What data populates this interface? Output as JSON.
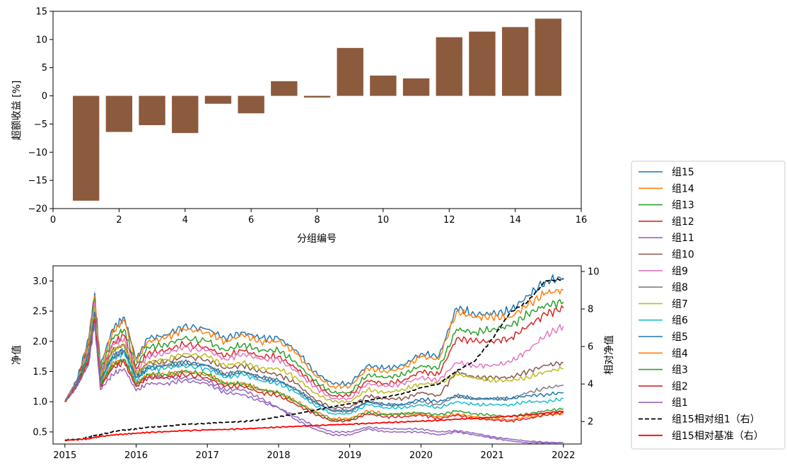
{
  "chart_data": [
    {
      "type": "bar",
      "xlabel": "分组编号",
      "ylabel": "超额收益 [%]",
      "xlim": [
        0,
        16
      ],
      "ylim": [
        -20,
        15
      ],
      "xticks": [
        0,
        2,
        4,
        6,
        8,
        10,
        12,
        14,
        16
      ],
      "yticks": [
        -20,
        -15,
        -10,
        -5,
        0,
        5,
        10,
        15
      ],
      "bar_color": "#8c5a3c",
      "grid": false,
      "categories": [
        1,
        2,
        3,
        4,
        5,
        6,
        7,
        8,
        9,
        10,
        11,
        12,
        13,
        14,
        15
      ],
      "values": [
        -18.6,
        -6.4,
        -5.2,
        -6.6,
        -1.4,
        -3.1,
        2.6,
        -0.3,
        8.5,
        3.6,
        3.1,
        10.4,
        11.4,
        12.2,
        13.7
      ]
    },
    {
      "type": "line",
      "ylabel": "净值",
      "y2label": "相对净值",
      "xlim": [
        "2014-11-01",
        "2022-04-01"
      ],
      "ylim": [
        0.3,
        3.25
      ],
      "y2lim": [
        0.8,
        10.3
      ],
      "xticks": [
        "2015",
        "2016",
        "2017",
        "2018",
        "2019",
        "2020",
        "2021",
        "2022"
      ],
      "yticks": [
        0.5,
        1.0,
        1.5,
        2.0,
        2.5,
        3.0
      ],
      "y2ticks": [
        2,
        4,
        6,
        8,
        10
      ],
      "legend_position": "outside-right",
      "grid": false,
      "x": [
        "2015-01",
        "2015-03",
        "2015-05",
        "2015-06",
        "2015-07",
        "2015-09",
        "2015-11",
        "2016-01",
        "2016-03",
        "2016-06",
        "2016-09",
        "2017-01",
        "2017-04",
        "2017-07",
        "2017-10",
        "2018-01",
        "2018-04",
        "2018-07",
        "2018-10",
        "2019-01",
        "2019-04",
        "2019-07",
        "2019-10",
        "2020-01",
        "2020-04",
        "2020-07",
        "2020-10",
        "2021-01",
        "2021-04",
        "2021-07",
        "2021-10",
        "2022-01"
      ],
      "series": [
        {
          "name": "组15",
          "color": "#1f77b4",
          "axis": "left",
          "values": [
            1.0,
            1.35,
            2.05,
            2.8,
            1.6,
            2.2,
            2.4,
            1.7,
            2.05,
            2.1,
            2.25,
            2.2,
            2.05,
            2.15,
            2.05,
            2.05,
            1.85,
            1.5,
            1.3,
            1.3,
            1.6,
            1.55,
            1.6,
            1.8,
            1.75,
            2.55,
            2.45,
            2.45,
            2.5,
            2.75,
            3.0,
            3.05
          ]
        },
        {
          "name": "组14",
          "color": "#ff7f0e",
          "axis": "left",
          "values": [
            1.0,
            1.33,
            2.0,
            2.75,
            1.55,
            2.15,
            2.35,
            1.68,
            2.0,
            2.05,
            2.2,
            2.15,
            2.0,
            2.1,
            2.0,
            2.0,
            1.8,
            1.45,
            1.25,
            1.25,
            1.55,
            1.5,
            1.55,
            1.75,
            1.7,
            2.5,
            2.4,
            2.4,
            2.4,
            2.6,
            2.8,
            2.85
          ]
        },
        {
          "name": "组13",
          "color": "#2ca02c",
          "axis": "left",
          "values": [
            1.0,
            1.32,
            1.95,
            2.7,
            1.5,
            2.05,
            2.2,
            1.6,
            1.9,
            1.95,
            2.05,
            2.0,
            1.85,
            1.95,
            1.85,
            1.85,
            1.65,
            1.35,
            1.15,
            1.15,
            1.45,
            1.4,
            1.45,
            1.6,
            1.55,
            2.2,
            2.15,
            2.2,
            2.25,
            2.45,
            2.6,
            2.65
          ]
        },
        {
          "name": "组12",
          "color": "#d62728",
          "axis": "left",
          "values": [
            1.0,
            1.31,
            1.9,
            2.65,
            1.45,
            1.95,
            2.1,
            1.55,
            1.8,
            1.85,
            1.95,
            1.9,
            1.75,
            1.85,
            1.75,
            1.75,
            1.55,
            1.3,
            1.1,
            1.1,
            1.35,
            1.3,
            1.35,
            1.5,
            1.45,
            2.05,
            2.0,
            2.0,
            2.05,
            2.25,
            2.45,
            2.55
          ]
        },
        {
          "name": "组11",
          "color": "#9467bd",
          "axis": "left",
          "values": [
            1.0,
            1.28,
            1.75,
            2.4,
            1.3,
            1.6,
            1.7,
            1.3,
            1.4,
            1.4,
            1.4,
            1.35,
            1.2,
            1.2,
            1.05,
            0.9,
            0.7,
            0.55,
            0.45,
            0.45,
            0.55,
            0.5,
            0.5,
            0.5,
            0.45,
            0.5,
            0.45,
            0.4,
            0.35,
            0.32,
            0.32,
            0.32
          ]
        },
        {
          "name": "组10",
          "color": "#8c564b",
          "axis": "left",
          "values": [
            1.0,
            1.3,
            1.85,
            2.55,
            1.4,
            1.85,
            1.95,
            1.45,
            1.65,
            1.65,
            1.75,
            1.7,
            1.55,
            1.6,
            1.5,
            1.45,
            1.3,
            1.05,
            0.9,
            0.9,
            1.1,
            1.05,
            1.05,
            1.15,
            1.1,
            1.5,
            1.4,
            1.4,
            1.4,
            1.5,
            1.6,
            1.65
          ]
        },
        {
          "name": "组9",
          "color": "#e377c2",
          "axis": "left",
          "values": [
            1.0,
            1.31,
            1.9,
            2.65,
            1.45,
            1.95,
            2.05,
            1.5,
            1.75,
            1.8,
            1.9,
            1.85,
            1.7,
            1.8,
            1.7,
            1.7,
            1.5,
            1.25,
            1.05,
            1.05,
            1.3,
            1.25,
            1.3,
            1.4,
            1.35,
            1.65,
            1.6,
            1.6,
            1.65,
            1.85,
            2.1,
            2.25
          ]
        },
        {
          "name": "组8",
          "color": "#7f7f7f",
          "axis": "left",
          "values": [
            1.0,
            1.29,
            1.8,
            2.5,
            1.35,
            1.75,
            1.85,
            1.4,
            1.6,
            1.6,
            1.65,
            1.6,
            1.45,
            1.5,
            1.4,
            1.35,
            1.2,
            1.0,
            0.85,
            0.85,
            1.0,
            0.95,
            0.95,
            1.0,
            0.95,
            1.1,
            1.05,
            1.05,
            1.05,
            1.15,
            1.22,
            1.28
          ]
        },
        {
          "name": "组7",
          "color": "#bcbd22",
          "axis": "left",
          "values": [
            1.0,
            1.3,
            1.85,
            2.55,
            1.4,
            1.85,
            1.95,
            1.45,
            1.65,
            1.7,
            1.8,
            1.75,
            1.6,
            1.65,
            1.55,
            1.55,
            1.4,
            1.15,
            1.0,
            1.0,
            1.2,
            1.15,
            1.2,
            1.3,
            1.3,
            1.45,
            1.4,
            1.35,
            1.35,
            1.4,
            1.5,
            1.55
          ]
        },
        {
          "name": "组6",
          "color": "#17becf",
          "axis": "left",
          "values": [
            1.0,
            1.28,
            1.78,
            2.45,
            1.32,
            1.7,
            1.8,
            1.35,
            1.55,
            1.55,
            1.6,
            1.55,
            1.4,
            1.45,
            1.35,
            1.3,
            1.15,
            0.95,
            0.8,
            0.8,
            0.95,
            0.9,
            0.9,
            0.95,
            0.9,
            1.0,
            0.95,
            0.95,
            0.95,
            1.0,
            1.0,
            1.05
          ]
        },
        {
          "name": "组5",
          "color": "#1f77b4",
          "axis": "left",
          "values": [
            1.0,
            1.29,
            1.8,
            2.48,
            1.35,
            1.75,
            1.85,
            1.4,
            1.55,
            1.6,
            1.65,
            1.6,
            1.45,
            1.5,
            1.4,
            1.35,
            1.2,
            1.0,
            0.85,
            0.85,
            1.0,
            0.95,
            0.95,
            1.05,
            1.0,
            1.1,
            1.05,
            1.05,
            1.05,
            1.1,
            1.12,
            1.15
          ]
        },
        {
          "name": "组4",
          "color": "#ff7f0e",
          "axis": "left",
          "values": [
            1.0,
            1.27,
            1.72,
            2.4,
            1.28,
            1.62,
            1.7,
            1.3,
            1.45,
            1.45,
            1.5,
            1.45,
            1.3,
            1.3,
            1.2,
            1.15,
            1.0,
            0.85,
            0.72,
            0.72,
            0.85,
            0.8,
            0.8,
            0.8,
            0.75,
            0.8,
            0.75,
            0.72,
            0.7,
            0.75,
            0.78,
            0.8
          ]
        },
        {
          "name": "组3",
          "color": "#2ca02c",
          "axis": "left",
          "values": [
            1.0,
            1.27,
            1.7,
            2.38,
            1.26,
            1.6,
            1.7,
            1.28,
            1.45,
            1.45,
            1.5,
            1.45,
            1.3,
            1.3,
            1.2,
            1.15,
            1.0,
            0.82,
            0.7,
            0.7,
            0.82,
            0.78,
            0.8,
            0.82,
            0.78,
            0.85,
            0.8,
            0.78,
            0.75,
            0.8,
            0.85,
            0.88
          ]
        },
        {
          "name": "组2",
          "color": "#d62728",
          "axis": "left",
          "values": [
            1.0,
            1.26,
            1.68,
            2.35,
            1.25,
            1.55,
            1.65,
            1.25,
            1.4,
            1.4,
            1.45,
            1.4,
            1.25,
            1.25,
            1.15,
            1.1,
            0.95,
            0.8,
            0.68,
            0.68,
            0.8,
            0.75,
            0.75,
            0.78,
            0.72,
            0.78,
            0.72,
            0.7,
            0.68,
            0.72,
            0.78,
            0.82
          ]
        },
        {
          "name": "组1",
          "color": "#9467bd",
          "axis": "left",
          "values": [
            1.0,
            1.25,
            1.62,
            2.3,
            1.2,
            1.45,
            1.55,
            1.18,
            1.3,
            1.3,
            1.35,
            1.3,
            1.15,
            1.12,
            1.0,
            0.9,
            0.75,
            0.6,
            0.5,
            0.5,
            0.58,
            0.55,
            0.55,
            0.55,
            0.5,
            0.52,
            0.48,
            0.42,
            0.38,
            0.35,
            0.33,
            0.32
          ]
        },
        {
          "name": "组15相对组1（右）",
          "color": "#000000",
          "axis": "right",
          "dashed": true,
          "values": [
            1.0,
            1.05,
            1.15,
            1.25,
            1.3,
            1.45,
            1.55,
            1.6,
            1.7,
            1.75,
            1.85,
            1.9,
            1.95,
            2.0,
            2.1,
            2.25,
            2.4,
            2.6,
            2.8,
            2.95,
            3.1,
            3.3,
            3.5,
            3.8,
            4.0,
            4.7,
            5.2,
            6.4,
            7.8,
            8.4,
            9.5,
            9.6
          ]
        },
        {
          "name": "组15相对基准（右）",
          "color": "#ff0000",
          "axis": "right",
          "values": [
            1.0,
            1.03,
            1.08,
            1.15,
            1.2,
            1.28,
            1.33,
            1.37,
            1.42,
            1.46,
            1.51,
            1.55,
            1.58,
            1.61,
            1.65,
            1.7,
            1.74,
            1.78,
            1.82,
            1.86,
            1.9,
            1.94,
            1.98,
            2.02,
            2.06,
            2.12,
            2.17,
            2.22,
            2.28,
            2.35,
            2.45,
            2.55
          ]
        }
      ]
    }
  ]
}
